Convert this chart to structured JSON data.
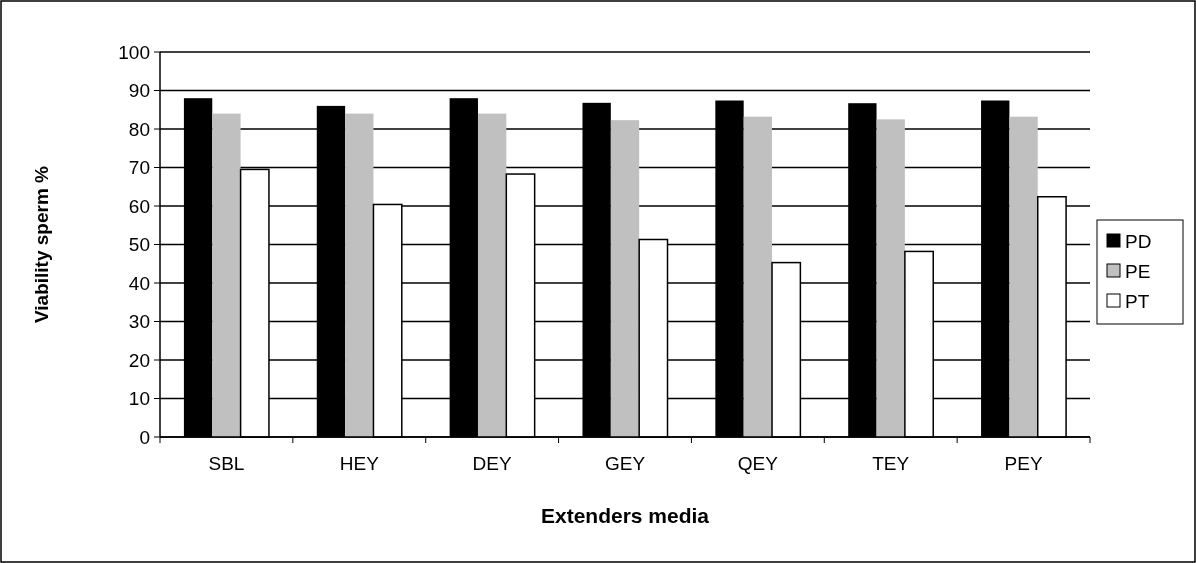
{
  "chart_data": {
    "type": "bar",
    "xlabel": "Extenders media",
    "ylabel": "Viability sperm %",
    "categories": [
      "SBL",
      "HEY",
      "DEY",
      "GEY",
      "QEY",
      "TEY",
      "PEY"
    ],
    "series": [
      {
        "name": "PD",
        "color": "#000000",
        "values": [
          88,
          86,
          88,
          86.8,
          87.4,
          86.7,
          87.4
        ]
      },
      {
        "name": "PE",
        "color": "#c0c0c0",
        "values": [
          84,
          84,
          84,
          82.3,
          83.2,
          82.5,
          83.2
        ]
      },
      {
        "name": "PT",
        "color": "#ffffff",
        "values": [
          69.5,
          60.4,
          68.3,
          51.3,
          45.3,
          48.2,
          62.4
        ]
      }
    ],
    "ylim": [
      0,
      100
    ],
    "yticks": [
      0,
      10,
      20,
      30,
      40,
      50,
      60,
      70,
      80,
      90,
      100
    ],
    "grid": "y",
    "legend": "right"
  }
}
